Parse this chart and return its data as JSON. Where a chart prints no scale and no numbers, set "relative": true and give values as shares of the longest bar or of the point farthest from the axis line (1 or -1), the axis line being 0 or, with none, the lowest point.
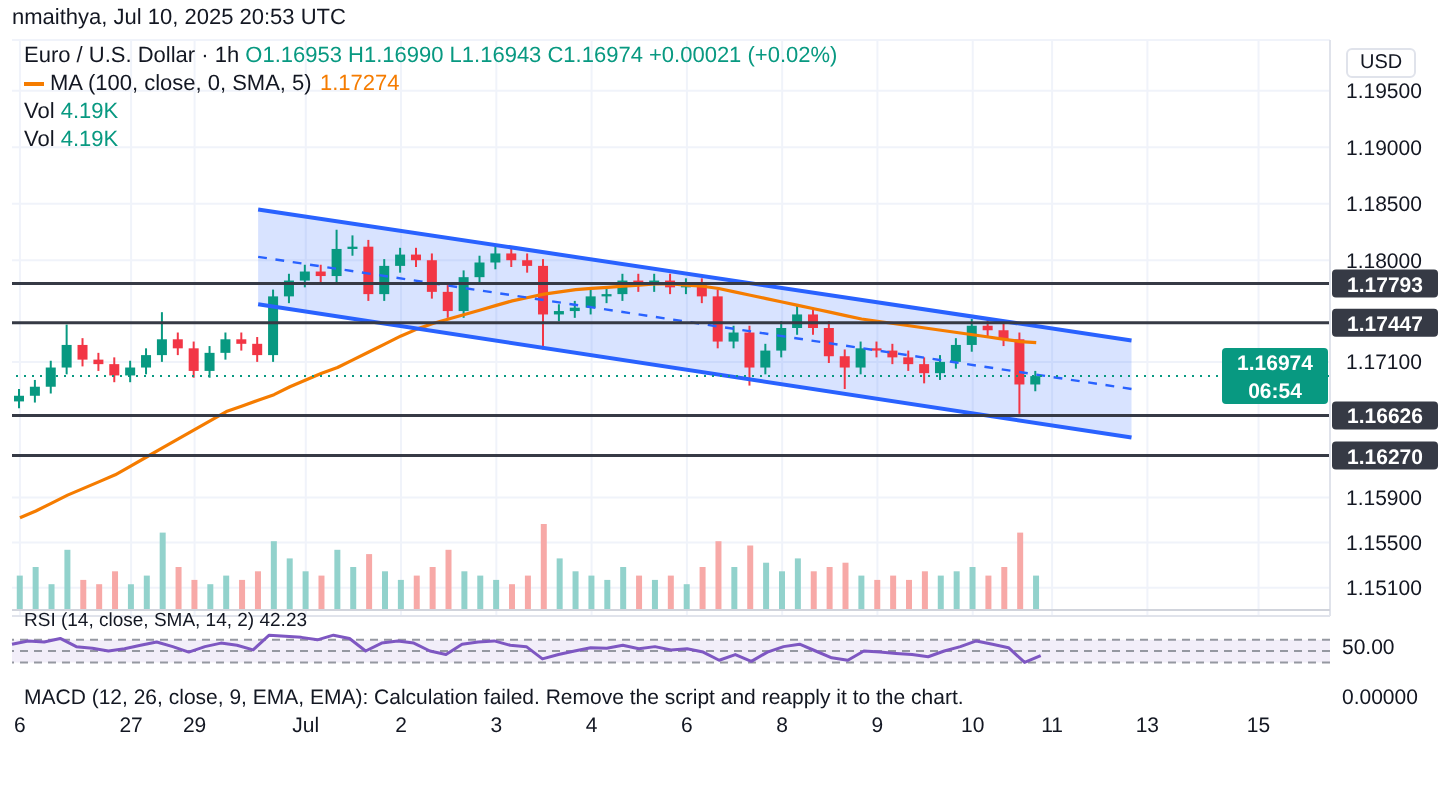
{
  "chart_data": [
    {
      "type": "candlestick",
      "title": "Euro / U.S. Dollar · 1h",
      "subtitle": "O1.16953 H1.16990 L1.16943 C1.16974 +0.00021 (+0.02%)",
      "ylabel": "USD",
      "annotations": [
        "nmaithya, Jul 10, 2025 20:53 UTC",
        "1.17274"
      ],
      "categories": [
        "6",
        null,
        null,
        null,
        null,
        null,
        null,
        "27",
        null,
        null,
        null,
        "29",
        null,
        null,
        null,
        null,
        null,
        null,
        "Jul",
        null,
        null,
        null,
        null,
        null,
        "2",
        null,
        null,
        null,
        null,
        null,
        "3",
        null,
        null,
        null,
        null,
        null,
        "4",
        null,
        null,
        null,
        null,
        null,
        "6",
        null,
        null,
        null,
        null,
        null,
        "8",
        null,
        null,
        null,
        null,
        null,
        "9",
        null,
        null,
        null,
        null,
        null,
        "10",
        null,
        null,
        null,
        null,
        "11",
        null,
        null,
        null,
        null,
        null,
        "13",
        null,
        null,
        null,
        null,
        null,
        null,
        "15",
        null,
        null,
        null,
        null
      ],
      "ohlc": [
        [
          1.1675,
          1.1686,
          1.1669,
          1.168
        ],
        [
          1.168,
          1.1694,
          1.1674,
          1.1688
        ],
        [
          1.1688,
          1.1711,
          1.1682,
          1.1705
        ],
        [
          1.1705,
          1.1743,
          1.1699,
          1.1725
        ],
        [
          1.1725,
          1.1731,
          1.1706,
          1.1712
        ],
        [
          1.1712,
          1.1718,
          1.1702,
          1.1708
        ],
        [
          1.1708,
          1.1714,
          1.1692,
          1.1698
        ],
        [
          1.1698,
          1.1711,
          1.1692,
          1.1705
        ],
        [
          1.1705,
          1.1722,
          1.1699,
          1.1716
        ],
        [
          1.1716,
          1.1754,
          1.171,
          1.173
        ],
        [
          1.173,
          1.1736,
          1.1716,
          1.1722
        ],
        [
          1.1722,
          1.1728,
          1.1696,
          1.1702
        ],
        [
          1.1702,
          1.1724,
          1.1696,
          1.1718
        ],
        [
          1.1718,
          1.1736,
          1.1712,
          1.173
        ],
        [
          1.173,
          1.1736,
          1.172,
          1.1726
        ],
        [
          1.1726,
          1.1732,
          1.171,
          1.1716
        ],
        [
          1.1716,
          1.1774,
          1.171,
          1.1768
        ],
        [
          1.1768,
          1.1788,
          1.1762,
          1.1782
        ],
        [
          1.1782,
          1.1796,
          1.1776,
          1.179
        ],
        [
          1.179,
          1.1796,
          1.178,
          1.1786
        ],
        [
          1.1786,
          1.1827,
          1.178,
          1.181
        ],
        [
          1.181,
          1.1822,
          1.1804,
          1.1812
        ],
        [
          1.1812,
          1.1818,
          1.1764,
          1.177
        ],
        [
          1.177,
          1.1801,
          1.1764,
          1.1795
        ],
        [
          1.1795,
          1.1811,
          1.1789,
          1.1805
        ],
        [
          1.1805,
          1.1811,
          1.1794,
          1.18
        ],
        [
          1.18,
          1.1806,
          1.1766,
          1.1772
        ],
        [
          1.1772,
          1.1778,
          1.1749,
          1.1755
        ],
        [
          1.1755,
          1.1791,
          1.1749,
          1.1785
        ],
        [
          1.1785,
          1.1804,
          1.1779,
          1.1798
        ],
        [
          1.1798,
          1.1812,
          1.1792,
          1.1806
        ],
        [
          1.1806,
          1.1812,
          1.1794,
          1.18
        ],
        [
          1.18,
          1.1806,
          1.1789,
          1.1795
        ],
        [
          1.1795,
          1.1801,
          1.1721,
          1.1752
        ],
        [
          1.1752,
          1.1761,
          1.1746,
          1.1755
        ],
        [
          1.1755,
          1.1764,
          1.1749,
          1.1758
        ],
        [
          1.1758,
          1.1774,
          1.1752,
          1.1768
        ],
        [
          1.1768,
          1.1776,
          1.1762,
          1.177
        ],
        [
          1.177,
          1.1788,
          1.1764,
          1.1782
        ],
        [
          1.1782,
          1.1788,
          1.1772,
          1.1778
        ],
        [
          1.1778,
          1.1788,
          1.1772,
          1.1782
        ],
        [
          1.1782,
          1.1788,
          1.177,
          1.1776
        ],
        [
          1.1776,
          1.1784,
          1.177,
          1.1778
        ],
        [
          1.1778,
          1.1784,
          1.1762,
          1.1768
        ],
        [
          1.1768,
          1.1774,
          1.1722,
          1.1728
        ],
        [
          1.1728,
          1.1742,
          1.1722,
          1.1736
        ],
        [
          1.1736,
          1.1742,
          1.1689,
          1.1705
        ],
        [
          1.1705,
          1.1726,
          1.1699,
          1.172
        ],
        [
          1.172,
          1.1746,
          1.1714,
          1.174
        ],
        [
          1.174,
          1.1761,
          1.1734,
          1.1752
        ],
        [
          1.1752,
          1.1758,
          1.1734,
          1.174
        ],
        [
          1.174,
          1.1746,
          1.1709,
          1.1715
        ],
        [
          1.1715,
          1.1721,
          1.1686,
          1.1705
        ],
        [
          1.1705,
          1.1728,
          1.1699,
          1.1722
        ],
        [
          1.1722,
          1.1728,
          1.1714,
          1.172
        ],
        [
          1.172,
          1.1726,
          1.1708,
          1.1714
        ],
        [
          1.1714,
          1.172,
          1.1702,
          1.1708
        ],
        [
          1.1708,
          1.1714,
          1.1691,
          1.17
        ],
        [
          1.17,
          1.1716,
          1.1694,
          1.171
        ],
        [
          1.171,
          1.1731,
          1.1704,
          1.1725
        ],
        [
          1.1725,
          1.1748,
          1.1719,
          1.1742
        ],
        [
          1.1742,
          1.1748,
          1.1732,
          1.1738
        ],
        [
          1.1738,
          1.1744,
          1.1724,
          1.173
        ],
        [
          1.173,
          1.1736,
          1.1664,
          1.169
        ],
        [
          1.169,
          1.1702,
          1.1684,
          1.16974
        ],
        null,
        null,
        null,
        null,
        null,
        null,
        null,
        null,
        null,
        null,
        null,
        null,
        null,
        null,
        null,
        null,
        null,
        null
      ],
      "colors": [
        "#089981",
        "#089981",
        "#089981",
        "#089981",
        "#f23645",
        "#f23645",
        "#f23645",
        "#089981",
        "#089981",
        "#089981",
        "#f23645",
        "#f23645",
        "#089981",
        "#089981",
        "#f23645",
        "#f23645",
        "#089981",
        "#089981",
        "#089981",
        "#f23645",
        "#089981",
        "#089981",
        "#f23645",
        "#089981",
        "#089981",
        "#f23645",
        "#f23645",
        "#f23645",
        "#089981",
        "#089981",
        "#089981",
        "#f23645",
        "#f23645",
        "#f23645",
        "#089981",
        "#089981",
        "#089981",
        "#089981",
        "#089981",
        "#f23645",
        "#089981",
        "#f23645",
        "#089981",
        "#f23645",
        "#f23645",
        "#089981",
        "#f23645",
        "#089981",
        "#089981",
        "#089981",
        "#f23645",
        "#f23645",
        "#f23645",
        "#089981",
        "#f23645",
        "#f23645",
        "#f23645",
        "#f23645",
        "#089981",
        "#089981",
        "#089981",
        "#f23645",
        "#f23645",
        "#f23645",
        "#089981",
        null,
        null,
        null,
        null,
        null,
        null,
        null,
        null,
        null,
        null,
        null,
        null,
        null,
        null,
        null,
        null,
        null,
        null
      ],
      "series": [
        {
          "type": "line",
          "name": "MA (100, close, 0, SMA, 5)",
          "color": "#f57c00",
          "values": [
            1.1572,
            1.1578,
            1.1585,
            1.1592,
            1.1598,
            1.1604,
            1.161,
            1.1618,
            1.1626,
            1.1634,
            1.1642,
            1.165,
            1.1658,
            1.1666,
            1.1671,
            1.1676,
            1.1681,
            1.1688,
            1.1694,
            1.17,
            1.1705,
            1.1712,
            1.1719,
            1.1726,
            1.1733,
            1.1739,
            1.1744,
            1.1748,
            1.1752,
            1.1756,
            1.176,
            1.1764,
            1.1767,
            1.177,
            1.1772,
            1.1774,
            1.1775,
            1.1776,
            1.1777,
            1.1778,
            1.1779,
            1.1779,
            1.1778,
            1.1777,
            1.1775,
            1.1772,
            1.1769,
            1.1766,
            1.1763,
            1.176,
            1.1757,
            1.1754,
            1.1751,
            1.1748,
            1.1746,
            1.1744,
            1.1742,
            1.174,
            1.1738,
            1.1736,
            1.1734,
            1.1732,
            1.173,
            1.1728,
            1.1727,
            null,
            null,
            null,
            null,
            null,
            null,
            null,
            null,
            null,
            null,
            null,
            null,
            null,
            null,
            null,
            null,
            null,
            null
          ]
        },
        {
          "type": "line",
          "color": "#2962ff",
          "values": [
            null,
            null,
            null,
            null,
            null,
            null,
            null,
            null,
            null,
            null,
            null,
            null,
            null,
            null,
            null,
            1.1845,
            null,
            null,
            null,
            null,
            null,
            null,
            null,
            null,
            null,
            null,
            null,
            null,
            null,
            null,
            null,
            null,
            null,
            null,
            null,
            null,
            null,
            null,
            null,
            null,
            null,
            null,
            null,
            null,
            null,
            null,
            null,
            null,
            null,
            null,
            null,
            null,
            null,
            null,
            null,
            null,
            null,
            null,
            null,
            null,
            null,
            null,
            null,
            null,
            null,
            null,
            null,
            null,
            null,
            null,
            1.1729,
            null,
            null,
            null,
            null,
            null,
            null,
            null,
            null,
            null,
            null,
            null,
            null
          ]
        },
        {
          "type": "line",
          "color": "#2962ff",
          "values": [
            null,
            null,
            null,
            null,
            null,
            null,
            null,
            null,
            null,
            null,
            null,
            null,
            null,
            null,
            null,
            1.1761,
            null,
            null,
            null,
            null,
            null,
            null,
            null,
            null,
            null,
            null,
            null,
            null,
            null,
            null,
            null,
            null,
            null,
            null,
            null,
            null,
            null,
            null,
            null,
            null,
            null,
            null,
            null,
            null,
            null,
            null,
            null,
            null,
            null,
            null,
            null,
            null,
            null,
            null,
            null,
            null,
            null,
            null,
            null,
            null,
            null,
            null,
            null,
            null,
            null,
            null,
            null,
            null,
            null,
            null,
            1.1643,
            null,
            null,
            null,
            null,
            null,
            null,
            null,
            null,
            null,
            null,
            null,
            null
          ]
        },
        {
          "type": "line",
          "color": "#2962ff",
          "line_style": "dashed",
          "values": [
            null,
            null,
            null,
            null,
            null,
            null,
            null,
            null,
            null,
            null,
            null,
            null,
            null,
            null,
            null,
            1.1803,
            null,
            null,
            null,
            null,
            null,
            null,
            null,
            null,
            null,
            null,
            null,
            null,
            null,
            null,
            null,
            null,
            null,
            null,
            null,
            null,
            null,
            null,
            null,
            null,
            null,
            null,
            null,
            null,
            null,
            null,
            null,
            null,
            null,
            null,
            null,
            null,
            null,
            null,
            null,
            null,
            null,
            null,
            null,
            null,
            null,
            null,
            null,
            null,
            null,
            null,
            null,
            null,
            null,
            null,
            1.1686,
            null,
            null,
            null,
            null,
            null,
            null,
            null,
            null,
            null,
            null,
            null,
            null
          ],
          "lower": [
            null,
            null,
            null,
            null,
            null,
            null,
            null,
            null,
            null,
            null,
            null,
            null,
            null,
            null,
            null,
            1.1761,
            null,
            null,
            null,
            null,
            null,
            null,
            null,
            null,
            null,
            null,
            null,
            null,
            null,
            null,
            null,
            null,
            null,
            null,
            null,
            null,
            null,
            null,
            null,
            null,
            null,
            null,
            null,
            null,
            null,
            null,
            null,
            null,
            null,
            null,
            null,
            null,
            null,
            null,
            null,
            null,
            null,
            null,
            null,
            null,
            null,
            null,
            null,
            null,
            null,
            null,
            null,
            null,
            null,
            null,
            1.1643,
            null,
            null,
            null,
            null,
            null,
            null,
            null,
            null,
            null,
            null,
            null,
            null
          ],
          "upper": [
            null,
            null,
            null,
            null,
            null,
            null,
            null,
            null,
            null,
            null,
            null,
            null,
            null,
            null,
            null,
            1.1845,
            null,
            null,
            null,
            null,
            null,
            null,
            null,
            null,
            null,
            null,
            null,
            null,
            null,
            null,
            null,
            null,
            null,
            null,
            null,
            null,
            null,
            null,
            null,
            null,
            null,
            null,
            null,
            null,
            null,
            null,
            null,
            null,
            null,
            null,
            null,
            null,
            null,
            null,
            null,
            null,
            null,
            null,
            null,
            null,
            null,
            null,
            null,
            null,
            null,
            null,
            null,
            null,
            null,
            null,
            1.1729,
            null,
            null,
            null,
            null,
            null,
            null,
            null,
            null,
            null,
            null,
            null,
            null
          ]
        }
      ],
      "ref_lines": [
        {
          "axis": "y",
          "value": 1.17793,
          "label": "1.17793",
          "color": "#363a45"
        },
        {
          "axis": "y",
          "value": 1.17447,
          "label": "1.17447",
          "color": "#363a45"
        },
        {
          "axis": "y",
          "value": 1.16626,
          "label": "1.16626",
          "color": "#363a45"
        },
        {
          "axis": "y",
          "value": 1.1627,
          "label": "1.16270",
          "color": "#363a45"
        },
        {
          "axis": "y",
          "value": 1.16974,
          "label": "1.16974 06:54",
          "color": "#089981",
          "line_style": "dotted"
        }
      ],
      "ylim": [
        1.1485,
        1.1995
      ],
      "yticks": [
        {
          "value": 1.151,
          "label": "1.15100"
        },
        {
          "value": 1.155,
          "label": "1.15500"
        },
        {
          "value": 1.159,
          "label": "1.15900"
        },
        {
          "value": 1.171,
          "label": "1.17100"
        },
        {
          "value": 1.18,
          "label": "1.18000"
        },
        {
          "value": 1.185,
          "label": "1.18500"
        },
        {
          "value": 1.19,
          "label": "1.19000"
        },
        {
          "value": 1.195,
          "label": "1.19500"
        }
      ],
      "grid": true,
      "legend": "top left"
    },
    {
      "type": "bar",
      "relative": true,
      "annotations": [
        "Vol 4.19K",
        "Vol 4.19K"
      ],
      "categories": [
        null,
        null,
        null,
        null,
        null,
        null,
        null,
        null,
        null,
        null,
        null,
        null,
        null,
        null,
        null,
        null,
        null,
        null,
        null,
        null,
        null,
        null,
        null,
        null,
        null,
        null,
        null,
        null,
        null,
        null,
        null,
        null,
        null,
        null,
        null,
        null,
        null,
        null,
        null,
        null,
        null,
        null,
        null,
        null,
        null,
        null,
        null,
        null,
        null,
        null,
        null,
        null,
        null,
        null,
        null,
        null,
        null,
        null,
        null,
        null,
        null,
        null,
        null,
        null,
        null,
        null,
        null,
        null,
        null,
        null,
        null,
        null,
        null,
        null,
        null,
        null,
        null,
        null,
        null,
        null,
        null,
        null,
        null
      ],
      "values": [
        0.4,
        0.5,
        0.3,
        0.7,
        0.35,
        0.3,
        0.45,
        0.3,
        0.4,
        0.9,
        0.5,
        0.35,
        0.3,
        0.4,
        0.35,
        0.45,
        0.8,
        0.6,
        0.45,
        0.4,
        0.7,
        0.5,
        0.65,
        0.45,
        0.35,
        0.4,
        0.5,
        0.7,
        0.45,
        0.4,
        0.35,
        0.3,
        0.4,
        1,
        0.6,
        0.45,
        0.4,
        0.35,
        0.5,
        0.4,
        0.35,
        0.4,
        0.3,
        0.5,
        0.8,
        0.5,
        0.75,
        0.55,
        0.45,
        0.6,
        0.45,
        0.5,
        0.55,
        0.4,
        0.35,
        0.4,
        0.35,
        0.45,
        0.4,
        0.45,
        0.5,
        0.4,
        0.5,
        0.9,
        0.4,
        null,
        null,
        null,
        null,
        null,
        null,
        null,
        null,
        null,
        null,
        null,
        null,
        null,
        null,
        null,
        null,
        null,
        null
      ],
      "colors": [
        "#92d2cc",
        "#92d2cc",
        "#92d2cc",
        "#92d2cc",
        "#f7a9a7",
        "#f7a9a7",
        "#f7a9a7",
        "#92d2cc",
        "#92d2cc",
        "#92d2cc",
        "#f7a9a7",
        "#f7a9a7",
        "#92d2cc",
        "#92d2cc",
        "#f7a9a7",
        "#f7a9a7",
        "#92d2cc",
        "#92d2cc",
        "#92d2cc",
        "#f7a9a7",
        "#92d2cc",
        "#92d2cc",
        "#f7a9a7",
        "#92d2cc",
        "#92d2cc",
        "#f7a9a7",
        "#f7a9a7",
        "#f7a9a7",
        "#92d2cc",
        "#92d2cc",
        "#92d2cc",
        "#f7a9a7",
        "#f7a9a7",
        "#f7a9a7",
        "#92d2cc",
        "#92d2cc",
        "#92d2cc",
        "#92d2cc",
        "#92d2cc",
        "#f7a9a7",
        "#92d2cc",
        "#f7a9a7",
        "#92d2cc",
        "#f7a9a7",
        "#f7a9a7",
        "#92d2cc",
        "#f7a9a7",
        "#92d2cc",
        "#92d2cc",
        "#92d2cc",
        "#f7a9a7",
        "#f7a9a7",
        "#f7a9a7",
        "#92d2cc",
        "#f7a9a7",
        "#f7a9a7",
        "#f7a9a7",
        "#f7a9a7",
        "#92d2cc",
        "#92d2cc",
        "#92d2cc",
        "#f7a9a7",
        "#f7a9a7",
        "#f7a9a7",
        "#92d2cc",
        null,
        null,
        null,
        null,
        null,
        null,
        null,
        null,
        null,
        null,
        null,
        null,
        null,
        null,
        null,
        null,
        null,
        null
      ]
    },
    {
      "type": "line",
      "title": "RSI (14, close, SMA, 14, 2) 42.23",
      "color": "#7e57c2",
      "categories": [
        null,
        null,
        null,
        null,
        null,
        null,
        null,
        null,
        null,
        null,
        null,
        null,
        null,
        null,
        null,
        null,
        null,
        null,
        null,
        null,
        null,
        null,
        null,
        null,
        null,
        null,
        null,
        null,
        null,
        null,
        null,
        null,
        null,
        null,
        null,
        null,
        null,
        null,
        null,
        null,
        null,
        null,
        null,
        null,
        null,
        null,
        null,
        null,
        null,
        null,
        null,
        null,
        null,
        null,
        null,
        null,
        null,
        null,
        null,
        null,
        null,
        null,
        null,
        null,
        null,
        null,
        null,
        null,
        null,
        null,
        null,
        null,
        null,
        null,
        null,
        null,
        null,
        null,
        null,
        null,
        null,
        null,
        null
      ],
      "relative": true,
      "annotations": [
        "50.00"
      ],
      "values": [
        0.67,
        0.79,
        0.75,
        0.88,
        0.58,
        0.52,
        0.42,
        0.5,
        0.63,
        0.75,
        0.58,
        0.38,
        0.58,
        0.71,
        0.63,
        0.46,
        1,
        0.96,
        0.92,
        0.83,
        1,
        0.88,
        0.42,
        0.71,
        0.79,
        0.71,
        0.42,
        0.29,
        0.67,
        0.75,
        0.79,
        0.63,
        0.58,
        0.13,
        0.29,
        0.42,
        0.54,
        0.52,
        0.63,
        0.5,
        0.58,
        0.46,
        0.5,
        0.38,
        0.08,
        0.29,
        0.04,
        0.38,
        0.58,
        0.67,
        0.42,
        0.17,
        0.08,
        0.42,
        0.38,
        0.33,
        0.29,
        0.21,
        0.42,
        0.58,
        0.79,
        0.67,
        0.54,
        0,
        0.25,
        null,
        null,
        null,
        null,
        null,
        null,
        null,
        null,
        null,
        null,
        null,
        null,
        null,
        null,
        null,
        null,
        null,
        null
      ],
      "bands": [
        {
          "axis": "y",
          "from": 0,
          "to": 0.83,
          "color": "#ede7f6"
        }
      ],
      "ref_lines": [
        {
          "axis": "y",
          "value": 0.83,
          "color": "#9598a1",
          "line_style": "dashed"
        },
        {
          "axis": "y",
          "value": 0.42,
          "color": "#9598a1",
          "line_style": "dashed"
        },
        {
          "axis": "y",
          "value": 0,
          "color": "#9598a1",
          "line_style": "dashed"
        }
      ]
    },
    {
      "type": "other",
      "title": "MACD (12, 26, close, 9, EMA, EMA): Calculation failed. Remove the script and reapply it to the chart.",
      "annotations": [
        "0.00000"
      ]
    }
  ]
}
